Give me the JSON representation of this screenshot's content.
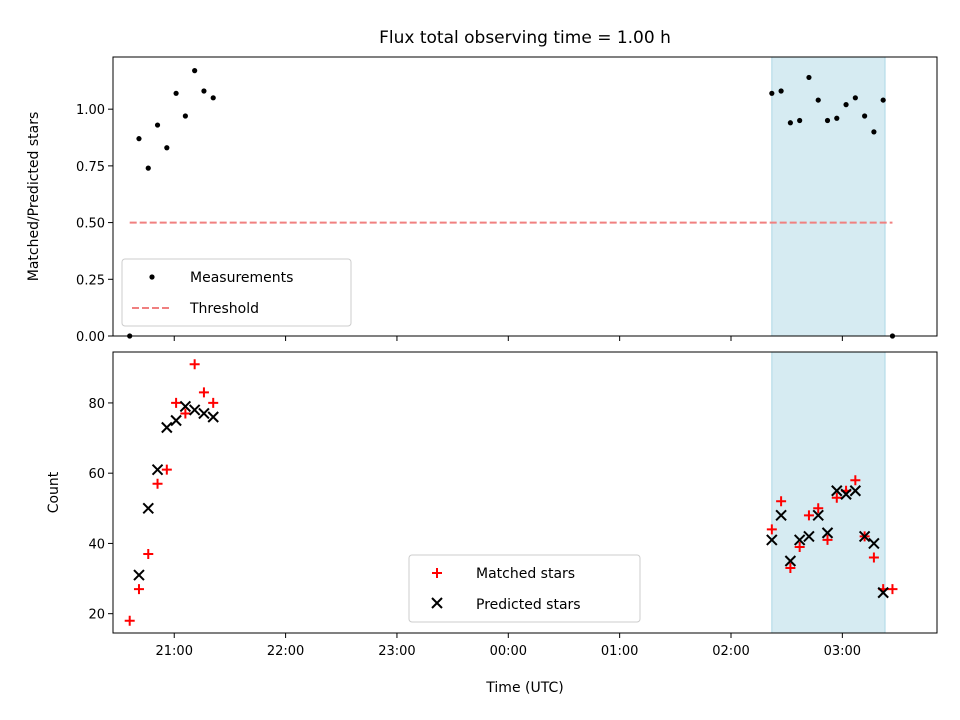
{
  "chart_data": [
    {
      "type": "scatter",
      "title": "Flux total observing time = 1.00 h",
      "xlabel": "",
      "ylabel": "Matched/Predicted stars",
      "xlim": [
        "20:27",
        "03:51"
      ],
      "ylim": [
        0,
        1.23
      ],
      "x_ticks": [
        "21:00",
        "22:00",
        "23:00",
        "00:00",
        "01:00",
        "02:00",
        "03:00"
      ],
      "y_ticks": [
        "0.00",
        "0.25",
        "0.50",
        "0.75",
        "1.00"
      ],
      "y_tick_values": [
        0,
        0.25,
        0.5,
        0.75,
        1.0
      ],
      "shaded_interval": [
        "02:22",
        "03:23"
      ],
      "shaded_color": "#add8e6",
      "legend_position": "lower-left",
      "series": [
        {
          "name": "Measurements",
          "marker": "dot",
          "color": "#000000",
          "x": [
            "20:36",
            "20:41",
            "20:46",
            "20:51",
            "20:56",
            "21:01",
            "21:06",
            "21:11",
            "21:16",
            "21:21",
            "02:22",
            "02:27",
            "02:32",
            "02:37",
            "02:42",
            "02:47",
            "02:52",
            "02:57",
            "03:02",
            "03:07",
            "03:12",
            "03:17",
            "03:22",
            "03:27"
          ],
          "y": [
            0.0,
            0.87,
            0.74,
            0.93,
            0.83,
            1.07,
            0.97,
            1.17,
            1.08,
            1.05,
            1.07,
            1.08,
            0.94,
            0.95,
            1.14,
            1.04,
            0.95,
            0.96,
            1.02,
            1.05,
            0.97,
            0.9,
            1.04,
            0.0
          ]
        },
        {
          "name": "Threshold",
          "line": "dashed",
          "color": "#f08080",
          "x": [
            "20:36",
            "03:27"
          ],
          "y": [
            0.5,
            0.5
          ]
        }
      ]
    },
    {
      "type": "scatter",
      "title": "",
      "xlabel": "Time (UTC)",
      "ylabel": "Count",
      "xlim": [
        "20:27",
        "03:51"
      ],
      "ylim": [
        14.5,
        94.5
      ],
      "x_ticks": [
        "21:00",
        "22:00",
        "23:00",
        "00:00",
        "01:00",
        "02:00",
        "03:00"
      ],
      "y_ticks": [
        "20",
        "40",
        "60",
        "80"
      ],
      "y_tick_values": [
        20,
        40,
        60,
        80
      ],
      "shaded_interval": [
        "02:22",
        "03:23"
      ],
      "shaded_color": "#add8e6",
      "legend_position": "lower-center",
      "series": [
        {
          "name": "Matched stars",
          "marker": "plus",
          "color": "#ff0000",
          "x": [
            "20:36",
            "20:41",
            "20:46",
            "20:51",
            "20:56",
            "21:01",
            "21:06",
            "21:11",
            "21:16",
            "21:21",
            "02:22",
            "02:27",
            "02:32",
            "02:37",
            "02:42",
            "02:47",
            "02:52",
            "02:57",
            "03:02",
            "03:07",
            "03:12",
            "03:17",
            "03:22",
            "03:27"
          ],
          "y": [
            18,
            27,
            37,
            57,
            61,
            80,
            77,
            91,
            83,
            80,
            44,
            52,
            33,
            39,
            48,
            50,
            41,
            53,
            55,
            58,
            42,
            36,
            27,
            27
          ]
        },
        {
          "name": "Predicted stars",
          "marker": "x",
          "color": "#000000",
          "x": [
            "20:41",
            "20:46",
            "20:51",
            "20:56",
            "21:01",
            "21:06",
            "21:11",
            "21:16",
            "21:21",
            "02:22",
            "02:27",
            "02:32",
            "02:37",
            "02:42",
            "02:47",
            "02:52",
            "02:57",
            "03:02",
            "03:07",
            "03:12",
            "03:17",
            "03:22"
          ],
          "y": [
            31,
            50,
            61,
            73,
            75,
            79,
            78,
            77,
            76,
            41,
            48,
            35,
            41,
            42,
            48,
            43,
            55,
            54,
            55,
            42,
            40,
            26
          ]
        }
      ]
    }
  ]
}
